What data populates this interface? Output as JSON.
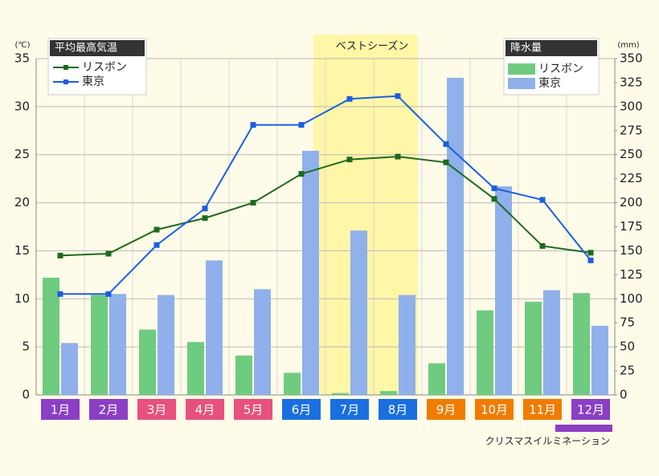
{
  "chart_data": {
    "type": "bar_line",
    "categories": [
      "1月",
      "2月",
      "3月",
      "4月",
      "5月",
      "6月",
      "7月",
      "8月",
      "9月",
      "10月",
      "11月",
      "12月"
    ],
    "category_colors": [
      "#8a3fc4",
      "#8a3fc4",
      "#e8507e",
      "#e8507e",
      "#e8507e",
      "#1a6fe0",
      "#1a6fe0",
      "#1a6fe0",
      "#f07c00",
      "#f07c00",
      "#f07c00",
      "#8a3fc4"
    ],
    "y_unit": "(℃)",
    "y2_unit": "(mm)",
    "ylim": [
      0,
      35
    ],
    "yticks": [
      0,
      5,
      10,
      15,
      20,
      25,
      30,
      35
    ],
    "y2lim": [
      0,
      350
    ],
    "y2ticks": [
      0,
      25,
      50,
      75,
      100,
      125,
      150,
      175,
      200,
      225,
      250,
      275,
      300,
      325,
      350
    ],
    "grid": true,
    "line_legend_title": "平均最高気温",
    "bar_legend_title": "降水量",
    "series": [
      {
        "name": "リスボン",
        "kind": "line",
        "axis": "y",
        "color": "#1d6a1d",
        "values": [
          14.5,
          14.7,
          17.2,
          18.4,
          20.0,
          23.0,
          24.5,
          24.8,
          24.2,
          20.4,
          15.5,
          14.8
        ]
      },
      {
        "name": "東京",
        "kind": "line",
        "axis": "y",
        "color": "#1a5fe0",
        "values": [
          10.5,
          10.5,
          15.6,
          19.4,
          28.1,
          28.1,
          30.8,
          31.1,
          26.1,
          21.5,
          20.3,
          14.0
        ]
      },
      {
        "name": "リスボン",
        "kind": "bar",
        "axis": "y2",
        "color": "#6fcb80",
        "values": [
          122,
          104,
          68,
          55,
          41,
          23,
          2,
          4,
          33,
          88,
          97,
          106
        ]
      },
      {
        "name": "東京",
        "kind": "bar",
        "axis": "y2",
        "color": "#8fb0ea",
        "values": [
          54,
          105,
          104,
          140,
          110,
          254,
          171,
          104,
          330,
          217,
          109,
          72
        ]
      }
    ],
    "highlight": {
      "label": "ベストシーズン",
      "from": 6,
      "to": 7,
      "color": "#fff6a8"
    },
    "note": {
      "label": "クリスマスイルミネーション",
      "from": 11,
      "to": 11,
      "color": "#8a3fc4"
    }
  }
}
